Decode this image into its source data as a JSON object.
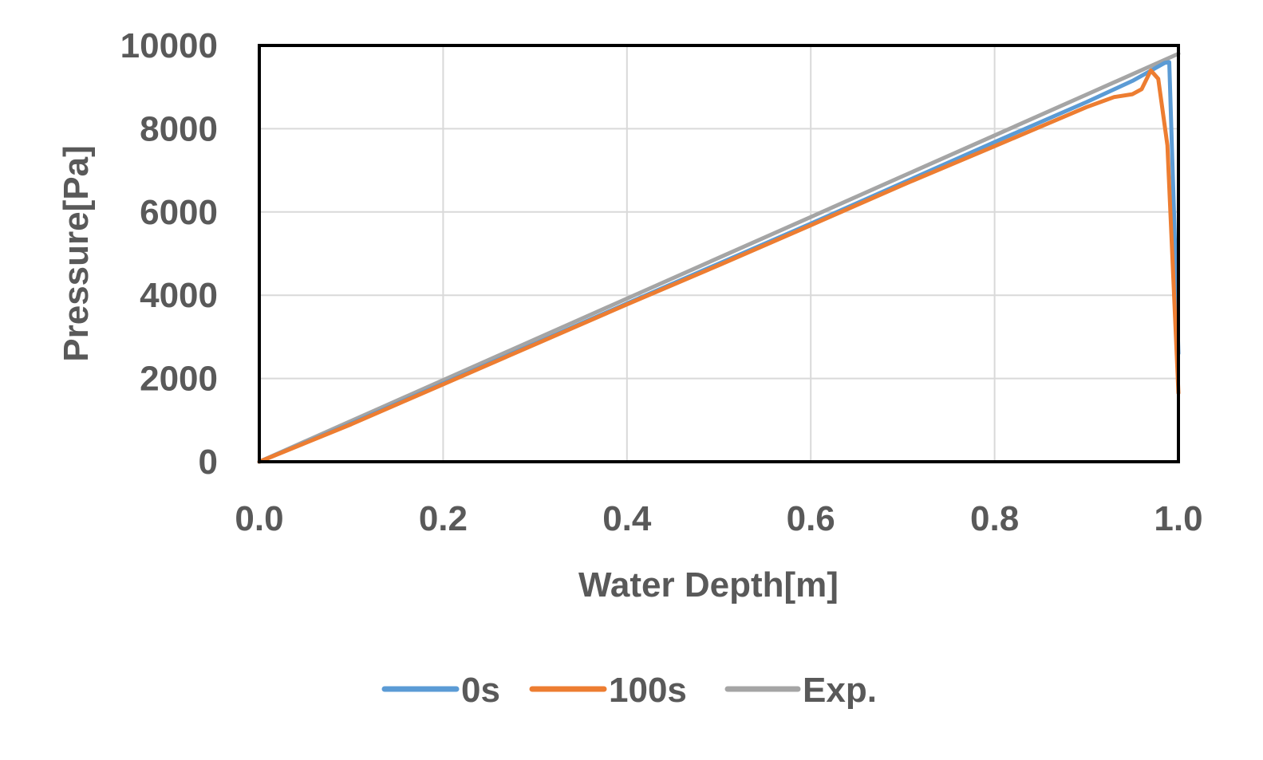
{
  "chart_data": {
    "type": "line",
    "title": "",
    "xlabel": "Water Depth[m]",
    "ylabel": "Pressure[Pa]",
    "xlim": [
      0.0,
      1.0
    ],
    "ylim": [
      0,
      10000
    ],
    "xticks": [
      "0.0",
      "0.2",
      "0.4",
      "0.6",
      "0.8",
      "1.0"
    ],
    "yticks": [
      "0",
      "2000",
      "4000",
      "6000",
      "8000",
      "10000"
    ],
    "grid": true,
    "legend_position": "bottom",
    "series": [
      {
        "name": "0s",
        "color": "#5B9BD5",
        "points": [
          [
            0.0,
            0
          ],
          [
            0.1,
            920
          ],
          [
            0.2,
            1880
          ],
          [
            0.3,
            2840
          ],
          [
            0.4,
            3800
          ],
          [
            0.5,
            4760
          ],
          [
            0.6,
            5720
          ],
          [
            0.7,
            6700
          ],
          [
            0.8,
            7680
          ],
          [
            0.9,
            8640
          ],
          [
            0.95,
            9150
          ],
          [
            0.985,
            9580
          ],
          [
            0.99,
            9600
          ],
          [
            1.0,
            2600
          ]
        ]
      },
      {
        "name": "100s",
        "color": "#ED7D31",
        "points": [
          [
            0.0,
            0
          ],
          [
            0.1,
            900
          ],
          [
            0.2,
            1860
          ],
          [
            0.3,
            2820
          ],
          [
            0.4,
            3780
          ],
          [
            0.5,
            4720
          ],
          [
            0.6,
            5680
          ],
          [
            0.7,
            6650
          ],
          [
            0.8,
            7580
          ],
          [
            0.85,
            8050
          ],
          [
            0.9,
            8520
          ],
          [
            0.93,
            8760
          ],
          [
            0.95,
            8830
          ],
          [
            0.96,
            8950
          ],
          [
            0.97,
            9400
          ],
          [
            0.978,
            9200
          ],
          [
            0.988,
            7600
          ],
          [
            1.0,
            1650
          ]
        ]
      },
      {
        "name": "Exp.",
        "color": "#A5A5A5",
        "points": [
          [
            0.0,
            0
          ],
          [
            0.1,
            980
          ],
          [
            0.2,
            1960
          ],
          [
            0.3,
            2940
          ],
          [
            0.4,
            3920
          ],
          [
            0.5,
            4900
          ],
          [
            0.6,
            5880
          ],
          [
            0.7,
            6860
          ],
          [
            0.8,
            7840
          ],
          [
            0.9,
            8820
          ],
          [
            1.0,
            9800
          ]
        ]
      }
    ]
  }
}
